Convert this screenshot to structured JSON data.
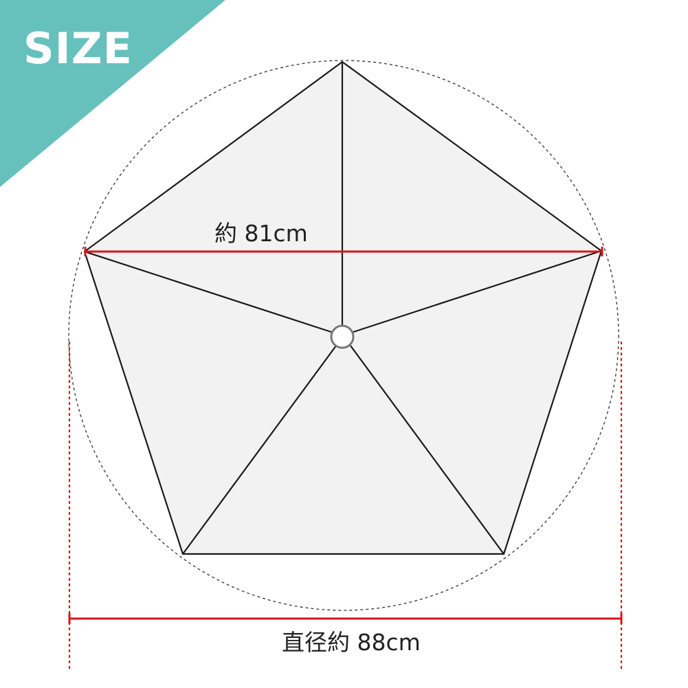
{
  "badge": {
    "label": "SIZE",
    "color": "#66c1bc"
  },
  "dimensions": {
    "edge_label": "約 81cm",
    "diameter_label": "直径約 88cm",
    "line_color": "#d9141a"
  },
  "diagram": {
    "panel_fill": "#f2f2f2",
    "outline_color": "#1a1a1a",
    "circle_color": "#333333",
    "hub_stroke": "#777777"
  }
}
